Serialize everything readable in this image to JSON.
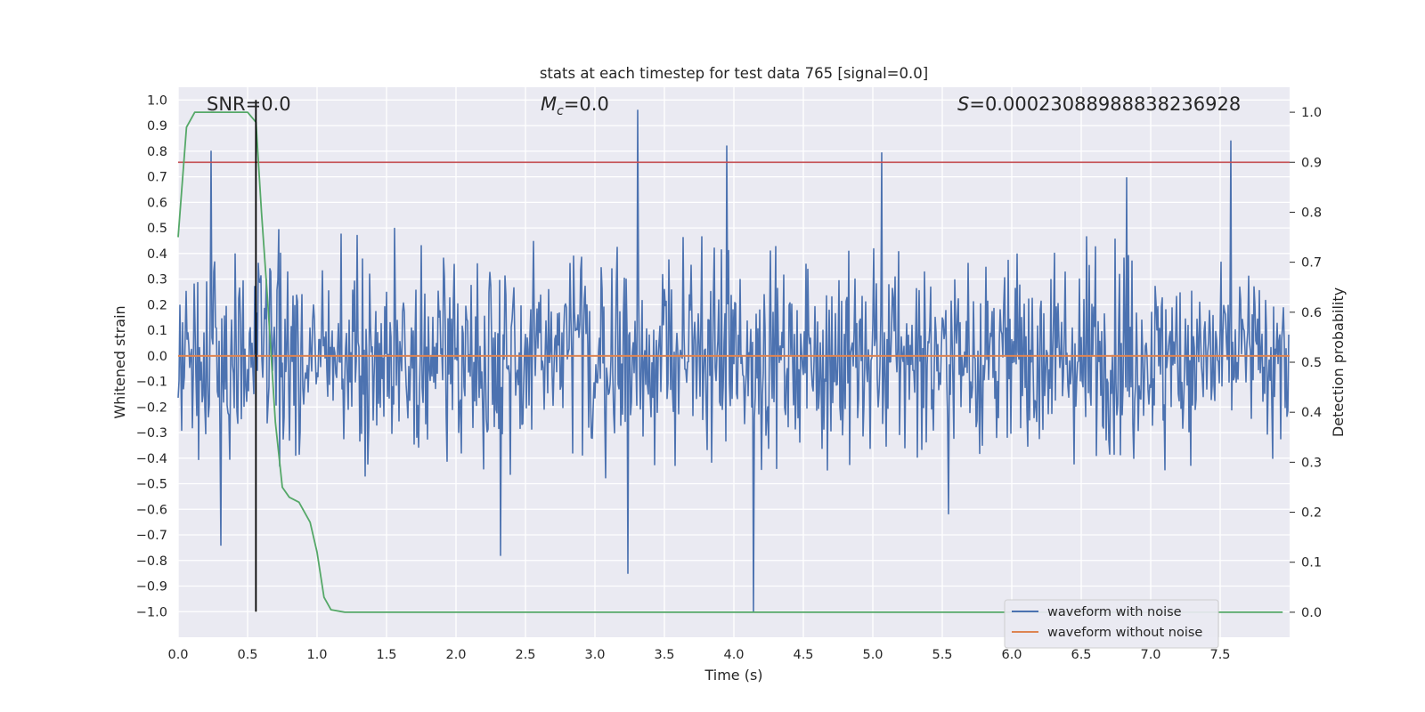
{
  "chart_data": {
    "type": "line",
    "title": "stats at each timestep for test data 765 [signal=0.0]",
    "xlabel": "Time (s)",
    "ylabel": "Whitened strain",
    "y2label": "Detection probability",
    "xlim": [
      0.0,
      8.0
    ],
    "ylim": [
      -1.1,
      1.05
    ],
    "y2lim": [
      -0.05,
      1.05
    ],
    "x_ticks": [
      0.0,
      0.5,
      1.0,
      1.5,
      2.0,
      2.5,
      3.0,
      3.5,
      4.0,
      4.5,
      5.0,
      5.5,
      6.0,
      6.5,
      7.0,
      7.5
    ],
    "x_tick_labels": [
      "0.0",
      "0.5",
      "1.0",
      "1.5",
      "2.0",
      "2.5",
      "3.0",
      "3.5",
      "4.0",
      "4.5",
      "5.0",
      "5.5",
      "6.0",
      "6.5",
      "7.0",
      "7.5"
    ],
    "y_ticks": [
      1.0,
      0.9,
      0.8,
      0.7,
      0.6,
      0.5,
      0.4,
      0.3,
      0.2,
      0.1,
      0.0,
      -0.1,
      -0.2,
      -0.3,
      -0.4,
      -0.5,
      -0.6,
      -0.7,
      -0.8,
      -0.9,
      -1.0
    ],
    "y_tick_labels": [
      "1.0",
      "0.9",
      "0.8",
      "0.7",
      "0.6",
      "0.5",
      "0.4",
      "0.3",
      "0.2",
      "0.1",
      "0.0",
      "−0.1",
      "−0.2",
      "−0.3",
      "−0.4",
      "−0.5",
      "−0.6",
      "−0.7",
      "−0.8",
      "−0.9",
      "−1.0"
    ],
    "y2_ticks": [
      1.0,
      0.9,
      0.8,
      0.7,
      0.6,
      0.5,
      0.4,
      0.3,
      0.2,
      0.1,
      0.0
    ],
    "y2_tick_labels": [
      "1.0",
      "0.9",
      "0.8",
      "0.7",
      "0.6",
      "0.5",
      "0.4",
      "0.3",
      "0.2",
      "0.1",
      "0.0"
    ],
    "grid": true,
    "annotations": {
      "snr": "SNR=0.0",
      "mc_symbol": "M",
      "mc_sub": "c",
      "mc_value": "=0.0",
      "s_symbol": "S",
      "s_value": "=0.00023088988838236928"
    },
    "legend": {
      "placement": "lower-right",
      "entries": [
        {
          "name": "waveform with noise",
          "color": "#4c72b0"
        },
        {
          "name": "waveform without noise",
          "color": "#dd8452"
        }
      ]
    },
    "noise_series": {
      "name": "waveform with noise",
      "color": "#4c72b0",
      "sample_rate_hz": 2048,
      "duration_s": 8.0,
      "typical_envelope": 0.33,
      "notable_peaks": [
        {
          "t": 0.24,
          "v": 0.8
        },
        {
          "t": 3.31,
          "v": 0.96
        },
        {
          "t": 3.95,
          "v": 0.82
        },
        {
          "t": 7.58,
          "v": 0.84
        },
        {
          "t": 3.24,
          "v": -0.85
        },
        {
          "t": 4.14,
          "v": -1.0
        },
        {
          "t": 0.31,
          "v": -0.74
        },
        {
          "t": 2.32,
          "v": -0.78
        }
      ]
    },
    "clean_series": {
      "name": "waveform without noise",
      "color": "#dd8452",
      "value": 0.0
    },
    "probability_series": {
      "color": "#55a868",
      "x": [
        0.0,
        0.06,
        0.12,
        0.2,
        0.3,
        0.4,
        0.5,
        0.56,
        0.6,
        0.65,
        0.7,
        0.75,
        0.8,
        0.87,
        0.95,
        1.0,
        1.05,
        1.1,
        1.2,
        1.5,
        7.95
      ],
      "y": [
        0.75,
        0.97,
        1.0,
        1.0,
        1.0,
        1.0,
        1.0,
        0.98,
        0.8,
        0.6,
        0.38,
        0.25,
        0.23,
        0.22,
        0.18,
        0.12,
        0.03,
        0.005,
        0.0,
        0.0,
        0.0
      ]
    },
    "threshold": {
      "value": 0.9,
      "axis": "y2",
      "color": "#c44e52"
    },
    "marker_vline": {
      "x": 0.56,
      "y_from": -1.0,
      "y_to": 1.0,
      "color": "#000000"
    }
  }
}
